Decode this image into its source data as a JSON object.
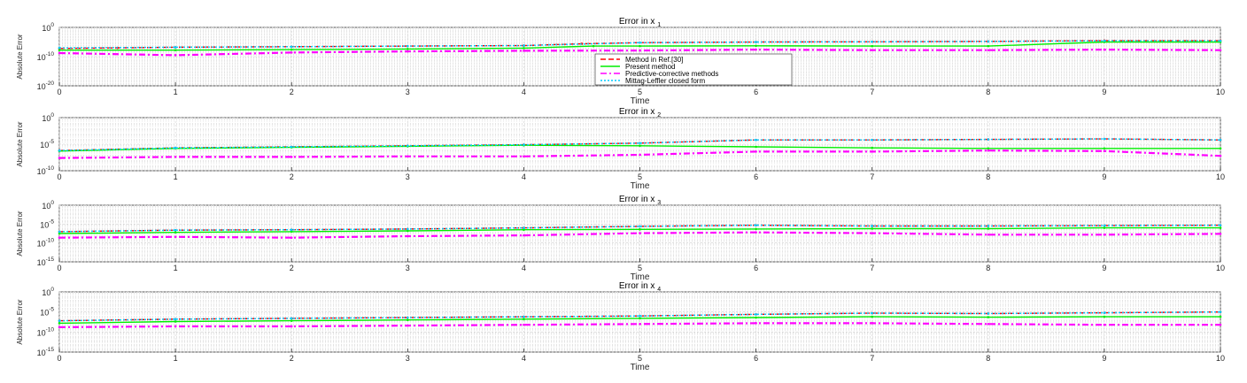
{
  "chart_data": [
    {
      "type": "line",
      "title": "Error in x",
      "title_sub": "1",
      "xlabel": "Time",
      "ylabel": "Absolute Error",
      "xlim": [
        0,
        10
      ],
      "ylim_log10": [
        -20,
        0
      ],
      "yscale": "log",
      "grid": true,
      "legend_placement": "lower-center",
      "yticks": [
        {
          "exp": 0,
          "label": "10",
          "sup": "0"
        },
        {
          "exp": -10,
          "label": "10",
          "sup": "-10"
        },
        {
          "exp": -20,
          "label": "10",
          "sup": "-20"
        }
      ],
      "series": [
        {
          "name": "Method in Ref.[30]",
          "color": "#ff0000",
          "style": "dash",
          "x": [
            0,
            0.5,
            1,
            2,
            3,
            4,
            4.5,
            5,
            6,
            7,
            8,
            9,
            10
          ],
          "y_log10": [
            -7.2,
            -7.0,
            -6.8,
            -6.6,
            -6.4,
            -6.2,
            -5.6,
            -5.2,
            -5.0,
            -4.9,
            -4.8,
            -4.5,
            -4.5
          ]
        },
        {
          "name": "Present method",
          "color": "#00ee00",
          "style": "solid",
          "x": [
            0,
            1,
            2,
            3,
            4,
            4.6,
            5,
            6,
            7,
            8,
            9,
            10
          ],
          "y_log10": [
            -7.8,
            -7.8,
            -7.6,
            -7.4,
            -7.1,
            -6.4,
            -6.4,
            -6.3,
            -6.4,
            -6.4,
            -5.0,
            -5.0
          ]
        },
        {
          "name": "Predictive-corrective methods",
          "color": "#ff00ff",
          "style": "dashdot",
          "x": [
            0,
            1,
            2,
            3,
            4,
            5,
            6,
            7,
            8,
            9,
            10
          ],
          "y_log10": [
            -8.8,
            -9.5,
            -8.6,
            -8.2,
            -8.0,
            -7.9,
            -7.6,
            -7.8,
            -7.8,
            -7.6,
            -7.8
          ]
        },
        {
          "name": "Mittag-Leffler closed form",
          "color": "#00ccff",
          "style": "dot",
          "x": [
            0,
            1,
            2,
            3,
            4,
            5,
            6,
            7,
            8,
            9,
            10
          ],
          "y_log10": [
            -7.0,
            -6.8,
            -6.6,
            -6.4,
            -6.2,
            -5.2,
            -5.0,
            -4.9,
            -4.8,
            -4.6,
            -4.6
          ]
        }
      ]
    },
    {
      "type": "line",
      "title": "Error in x",
      "title_sub": "2",
      "xlabel": "Time",
      "ylabel": "Absolute Error",
      "xlim": [
        0,
        10
      ],
      "ylim_log10": [
        -10,
        0
      ],
      "yscale": "log",
      "grid": true,
      "yticks": [
        {
          "exp": 0,
          "label": "10",
          "sup": "0"
        },
        {
          "exp": -5,
          "label": "10",
          "sup": "-5"
        },
        {
          "exp": -10,
          "label": "10",
          "sup": "-10"
        }
      ],
      "series": [
        {
          "name": "Method in Ref.[30]",
          "color": "#ff0000",
          "style": "dash",
          "x": [
            0,
            1,
            2,
            3,
            4,
            5,
            6,
            7,
            8,
            9,
            10
          ],
          "y_log10": [
            -6.2,
            -5.7,
            -5.5,
            -5.3,
            -5.1,
            -4.8,
            -4.2,
            -4.2,
            -4.1,
            -4.0,
            -4.2
          ]
        },
        {
          "name": "Present method",
          "color": "#00ee00",
          "style": "solid",
          "x": [
            0,
            1,
            2,
            3,
            4,
            5,
            6,
            7,
            8,
            9,
            10
          ],
          "y_log10": [
            -6.3,
            -5.8,
            -5.6,
            -5.4,
            -5.2,
            -5.3,
            -5.5,
            -5.7,
            -5.8,
            -5.8,
            -5.8
          ]
        },
        {
          "name": "Predictive-corrective methods",
          "color": "#ff00ff",
          "style": "dashdot",
          "x": [
            0,
            1,
            2,
            3,
            4,
            5,
            6,
            7,
            8,
            9,
            10
          ],
          "y_log10": [
            -7.6,
            -7.4,
            -7.4,
            -7.3,
            -7.3,
            -7.0,
            -6.4,
            -6.4,
            -6.2,
            -6.3,
            -7.2
          ]
        },
        {
          "name": "Mittag-Leffler closed form",
          "color": "#00ccff",
          "style": "dot",
          "x": [
            0,
            1,
            2,
            3,
            4,
            5,
            6,
            7,
            8,
            9,
            10
          ],
          "y_log10": [
            -6.2,
            -5.7,
            -5.5,
            -5.3,
            -5.1,
            -4.8,
            -4.2,
            -4.2,
            -4.1,
            -4.0,
            -4.2
          ]
        }
      ]
    },
    {
      "type": "line",
      "title": "Error in x",
      "title_sub": "3",
      "xlabel": "Time",
      "ylabel": "Absolute Error",
      "xlim": [
        0,
        10
      ],
      "ylim_log10": [
        -15,
        0
      ],
      "yscale": "log",
      "grid": true,
      "yticks": [
        {
          "exp": 0,
          "label": "10",
          "sup": "0"
        },
        {
          "exp": -5,
          "label": "10",
          "sup": "-5"
        },
        {
          "exp": -10,
          "label": "10",
          "sup": "-10"
        },
        {
          "exp": -15,
          "label": "10",
          "sup": "-15"
        }
      ],
      "series": [
        {
          "name": "Method in Ref.[30]",
          "color": "#ff0000",
          "style": "dash",
          "x": [
            0,
            1,
            2,
            3,
            4,
            5,
            6,
            7,
            8,
            9,
            10
          ],
          "y_log10": [
            -7.0,
            -6.6,
            -6.5,
            -6.3,
            -6.0,
            -5.6,
            -5.3,
            -5.5,
            -5.5,
            -5.4,
            -5.3
          ]
        },
        {
          "name": "Present method",
          "color": "#00ee00",
          "style": "solid",
          "x": [
            0,
            1,
            2,
            3,
            4,
            5,
            6,
            7,
            8,
            9,
            10
          ],
          "y_log10": [
            -7.5,
            -7.2,
            -7.0,
            -6.8,
            -6.5,
            -6.4,
            -6.3,
            -6.2,
            -6.2,
            -6.0,
            -6.0
          ]
        },
        {
          "name": "Predictive-corrective methods",
          "color": "#ff00ff",
          "style": "dashdot",
          "x": [
            0,
            1,
            2,
            3,
            4,
            5,
            6,
            7,
            8,
            9,
            10
          ],
          "y_log10": [
            -8.6,
            -8.4,
            -8.6,
            -8.2,
            -8.0,
            -7.4,
            -7.2,
            -7.4,
            -7.8,
            -7.8,
            -7.6
          ]
        },
        {
          "name": "Mittag-Leffler closed form",
          "color": "#00ccff",
          "style": "dot",
          "x": [
            0,
            1,
            2,
            3,
            4,
            5,
            6,
            7,
            8,
            9,
            10
          ],
          "y_log10": [
            -7.0,
            -6.6,
            -6.5,
            -6.3,
            -6.0,
            -5.6,
            -5.3,
            -5.5,
            -5.5,
            -5.4,
            -5.3
          ]
        }
      ]
    },
    {
      "type": "line",
      "title": "Error in x",
      "title_sub": "4",
      "xlabel": "Time",
      "ylabel": "Absolute Error",
      "xlim": [
        0,
        10
      ],
      "ylim_log10": [
        -15,
        0
      ],
      "yscale": "log",
      "grid": true,
      "yticks": [
        {
          "exp": 0,
          "label": "10",
          "sup": "0"
        },
        {
          "exp": -5,
          "label": "10",
          "sup": "-5"
        },
        {
          "exp": -10,
          "label": "10",
          "sup": "-10"
        },
        {
          "exp": -15,
          "label": "10",
          "sup": "-15"
        }
      ],
      "series": [
        {
          "name": "Method in Ref.[30]",
          "color": "#ff0000",
          "style": "dash",
          "x": [
            0,
            1,
            2,
            3,
            4,
            5,
            6,
            7,
            8,
            9,
            10
          ],
          "y_log10": [
            -7.2,
            -6.8,
            -6.6,
            -6.4,
            -6.2,
            -6.0,
            -5.6,
            -5.3,
            -5.4,
            -5.2,
            -5.0
          ]
        },
        {
          "name": "Present method",
          "color": "#00ee00",
          "style": "solid",
          "x": [
            0,
            1,
            2,
            3,
            4,
            5,
            6,
            7,
            8,
            9,
            10
          ],
          "y_log10": [
            -7.8,
            -7.4,
            -7.2,
            -7.0,
            -6.8,
            -6.6,
            -6.4,
            -6.2,
            -6.3,
            -6.2,
            -6.2
          ]
        },
        {
          "name": "Predictive-corrective methods",
          "color": "#ff00ff",
          "style": "dashdot",
          "x": [
            0,
            1,
            2,
            3,
            4,
            5,
            6,
            7,
            8,
            9,
            10
          ],
          "y_log10": [
            -8.8,
            -8.6,
            -8.6,
            -8.4,
            -8.2,
            -8.0,
            -7.8,
            -7.8,
            -8.0,
            -8.2,
            -8.2
          ]
        },
        {
          "name": "Mittag-Leffler closed form",
          "color": "#00ccff",
          "style": "dot",
          "x": [
            0,
            1,
            2,
            3,
            4,
            5,
            6,
            7,
            8,
            9,
            10
          ],
          "y_log10": [
            -7.2,
            -6.8,
            -6.6,
            -6.4,
            -6.2,
            -6.0,
            -5.6,
            -5.3,
            -5.4,
            -5.2,
            -5.0
          ]
        }
      ]
    }
  ]
}
